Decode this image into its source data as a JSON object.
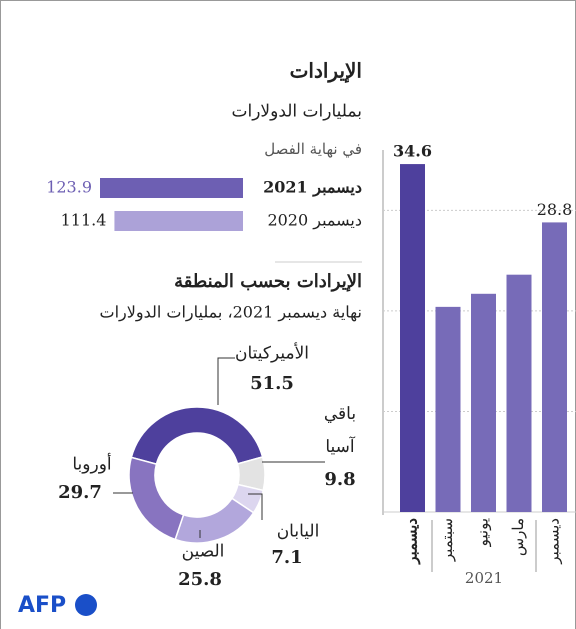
{
  "chart_data": [
    {
      "type": "hbar",
      "title": "الإيرادات",
      "subtitle": "بمليارات الدولارات",
      "note": "في نهاية الفصل",
      "categories": [
        "ديسمبر 2021",
        "ديسمبر 2020"
      ],
      "values": [
        123.9,
        111.4
      ],
      "colors": [
        "#6d5fb3",
        "#aca2d8"
      ]
    },
    {
      "type": "donut",
      "title": "الإيرادات بحسب المنطقة",
      "subtitle": "نهاية ديسمبر 2021، بمليارات الدولارات",
      "categories": [
        "الأميركيتان",
        "باقي آسيا",
        "اليابان",
        "الصين",
        "أوروبا"
      ],
      "values": [
        51.5,
        9.8,
        7.1,
        25.8,
        29.7
      ],
      "colors": [
        "#4e409d",
        "#e3e3e3",
        "#dcd6ef",
        "#b2a7dc",
        "#8874c0"
      ]
    },
    {
      "type": "bar",
      "categories": [
        "ديسمبر",
        "سبتمبر",
        "يونيو",
        "مارس",
        "ديسمبر"
      ],
      "values": [
        34.6,
        20.4,
        21.7,
        23.6,
        28.8
      ],
      "value_labels": [
        "34.6",
        null,
        null,
        null,
        "28.8"
      ],
      "colors": [
        "#4e409d",
        "#776bb8",
        "#776bb8",
        "#776bb8",
        "#776bb8"
      ],
      "ylim": [
        0,
        36
      ],
      "yticks": [
        0,
        10,
        20,
        30
      ],
      "grid": true,
      "group_label": "2021"
    }
  ],
  "logo": "AFP"
}
